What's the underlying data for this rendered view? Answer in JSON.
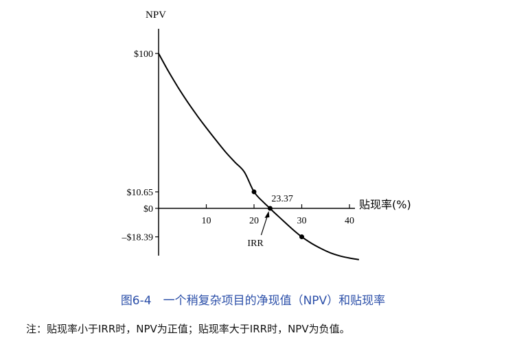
{
  "chart_data": {
    "type": "line",
    "ylabel": "NPV",
    "xlabel": "贴现率(%)",
    "x_ticks": [
      "10",
      "20",
      "30",
      "40"
    ],
    "y_ticks": [
      {
        "value": 100,
        "label": "$100"
      },
      {
        "value": 10.65,
        "label": "$10.65"
      },
      {
        "value": 0,
        "label": "$0"
      },
      {
        "value": -18.39,
        "label": "–$18.39"
      }
    ],
    "xlim": [
      0,
      42
    ],
    "ylim": [
      -32,
      110
    ],
    "series": [
      {
        "x": [
          0,
          2,
          4,
          6,
          8,
          10,
          12,
          14,
          16,
          18,
          20,
          22,
          23.37,
          24,
          26,
          28,
          30,
          32,
          34,
          36,
          38,
          40,
          42
        ],
        "y": [
          100,
          88.8,
          78.5,
          69.0,
          60.2,
          52.0,
          44.1,
          36.5,
          29.8,
          23.3,
          10.65,
          3.9,
          0,
          -2.0,
          -7.7,
          -13.3,
          -18.39,
          -22.5,
          -25.9,
          -28.7,
          -30.7,
          -32.1,
          -33.1
        ]
      }
    ],
    "marked_points": [
      {
        "x": 20,
        "y": 10.65
      },
      {
        "x": 23.37,
        "y": 0
      },
      {
        "x": 30,
        "y": -18.39
      }
    ],
    "annotations": {
      "irr_value": "23.37",
      "irr_label": "IRR"
    }
  },
  "caption": "图6-4　一个稍复杂项目的净现值（NPV）和贴现率",
  "note": "注：贴现率小于IRR时，NPV为正值；贴现率大于IRR时，NPV为负值。",
  "colors": {
    "curve": "#000000",
    "caption": "#2a4ea8"
  }
}
